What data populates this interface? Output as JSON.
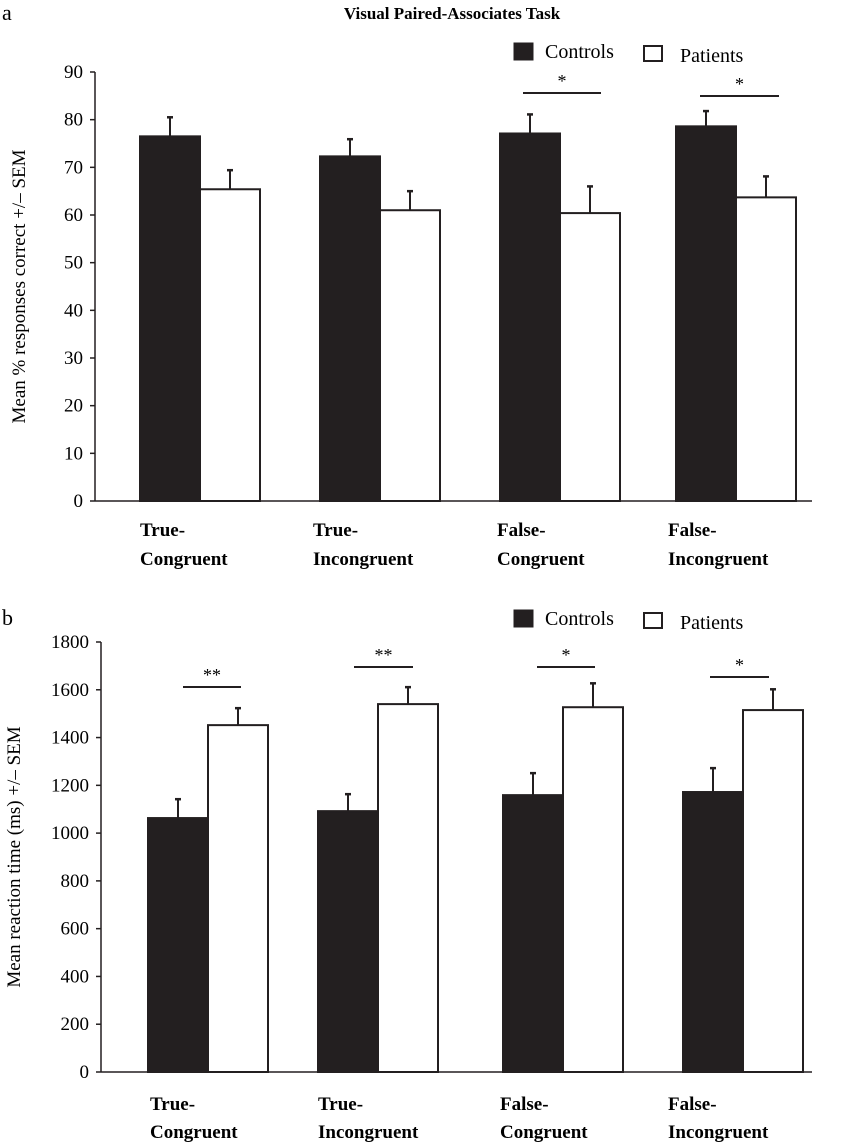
{
  "chart_data": [
    {
      "panel_label": "a",
      "type": "bar",
      "title": "Visual Paired-Associates Task",
      "ylabel": "Mean % responses correct +/– SEM",
      "xlabel": "",
      "ylim": [
        0,
        90
      ],
      "yticks": [
        0,
        10,
        20,
        30,
        40,
        50,
        60,
        70,
        80,
        90
      ],
      "categories": [
        [
          "True-",
          "Congruent"
        ],
        [
          "True-",
          "Incongruent"
        ],
        [
          "False-",
          "Congruent"
        ],
        [
          "False-",
          "Incongruent"
        ]
      ],
      "series": [
        {
          "name": "Controls",
          "color": "#231f20",
          "values": [
            76.5,
            72.3,
            77.1,
            78.6
          ],
          "error": [
            4.0,
            3.6,
            4.0,
            3.2
          ]
        },
        {
          "name": "Patients",
          "color": "#ffffff",
          "values": [
            65.4,
            61.0,
            60.4,
            63.7
          ],
          "error": [
            4.0,
            4.0,
            5.6,
            4.4
          ]
        }
      ],
      "significance": [
        "",
        "",
        "*",
        "*"
      ],
      "legend": "top-right",
      "grid": false
    },
    {
      "panel_label": "b",
      "type": "bar",
      "title": "",
      "ylabel": "Mean reaction time (ms)  +/– SEM",
      "xlabel": "",
      "ylim": [
        0,
        1800
      ],
      "yticks": [
        0,
        200,
        400,
        600,
        800,
        1000,
        1200,
        1400,
        1600,
        1800
      ],
      "categories": [
        [
          "True-",
          "Congruent"
        ],
        [
          "True-",
          "Incongruent"
        ],
        [
          "False-",
          "Congruent"
        ],
        [
          "False-",
          "Incongruent"
        ]
      ],
      "series": [
        {
          "name": "Controls",
          "color": "#231f20",
          "values": [
            1063,
            1092,
            1159,
            1172
          ],
          "error": [
            79,
            71,
            92,
            100
          ]
        },
        {
          "name": "Patients",
          "color": "#ffffff",
          "values": [
            1452,
            1540,
            1527,
            1515
          ],
          "error": [
            71,
            71,
            100,
            87
          ]
        }
      ],
      "significance": [
        "**",
        "**",
        "*",
        "*"
      ],
      "legend": "top-right",
      "grid": false
    }
  ]
}
